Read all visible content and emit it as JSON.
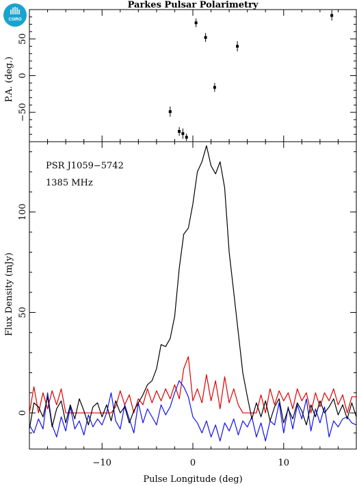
{
  "chart_data": [
    {
      "type": "scatter",
      "title": "Parkes Pulsar Polarimetry",
      "ylabel": "P.A. (deg.)",
      "xlim": [
        -18,
        18
      ],
      "ylim": [
        -90,
        90
      ],
      "yticks": [
        -50,
        0,
        50
      ],
      "points": [
        {
          "x": -2.5,
          "y": -49,
          "err": 7
        },
        {
          "x": -1.5,
          "y": -76,
          "err": 6
        },
        {
          "x": -1.1,
          "y": -79,
          "err": 7
        },
        {
          "x": -0.7,
          "y": -84,
          "err": 5
        },
        {
          "x": 0.35,
          "y": 72,
          "err": 6
        },
        {
          "x": 1.4,
          "y": 52,
          "err": 6
        },
        {
          "x": 2.4,
          "y": -16,
          "err": 6
        },
        {
          "x": 4.9,
          "y": 40,
          "err": 7
        },
        {
          "x": 15.3,
          "y": 82,
          "err": 7
        }
      ]
    },
    {
      "type": "line",
      "ylabel": "Flux Density (mJy)",
      "xlabel": "Pulse Longitude (deg)",
      "xlim": [
        -18,
        18
      ],
      "ylim": [
        -18,
        135
      ],
      "xticks": [
        -10,
        0,
        10
      ],
      "yticks": [
        0,
        50,
        100
      ],
      "annotations": [
        "PSR J1059−5742",
        "1385 MHz"
      ],
      "series": [
        {
          "color": "#000000",
          "x": [
            -18.0,
            -17.5,
            -17.0,
            -16.5,
            -16.0,
            -15.5,
            -15.0,
            -14.5,
            -14.0,
            -13.5,
            -13.0,
            -12.5,
            -12.0,
            -11.5,
            -11.0,
            -10.5,
            -10.0,
            -9.5,
            -9.0,
            -8.5,
            -8.0,
            -7.5,
            -7.0,
            -6.5,
            -6.0,
            -5.5,
            -5.0,
            -4.5,
            -4.0,
            -3.5,
            -3.0,
            -2.5,
            -2.0,
            -1.5,
            -1.0,
            -0.5,
            0.0,
            0.5,
            1.0,
            1.5,
            2.0,
            2.5,
            3.0,
            3.5,
            4.0,
            4.5,
            5.0,
            5.5,
            6.0,
            6.5,
            7.0,
            7.5,
            8.0,
            8.5,
            9.0,
            9.5,
            10.0,
            10.5,
            11.0,
            11.5,
            12.0,
            12.5,
            13.0,
            13.5,
            14.0,
            14.5,
            15.0,
            15.5,
            16.0,
            16.5,
            17.0,
            17.5,
            18.0
          ],
          "values": [
            -8,
            5,
            3,
            -2,
            8,
            -7,
            2,
            6,
            -5,
            4,
            -3,
            7,
            1,
            -6,
            3,
            5,
            -2,
            4,
            -4,
            6,
            0,
            3,
            -5,
            1,
            5,
            9,
            14,
            16,
            22,
            34,
            33,
            37,
            48,
            72,
            89,
            92,
            104,
            120,
            125,
            133,
            123,
            119,
            125,
            112,
            80,
            60,
            40,
            20,
            8,
            -3,
            5,
            -2,
            6,
            -4,
            3,
            7,
            -5,
            2,
            -3,
            5,
            1,
            -6,
            4,
            -2,
            6,
            0,
            3,
            7,
            -1,
            4,
            -3,
            5,
            -2
          ]
        },
        {
          "color": "#dd0000",
          "x": [
            -18.0,
            -17.5,
            -17.0,
            -16.5,
            -16.0,
            -15.5,
            -15.0,
            -14.5,
            -14.0,
            -13.5,
            -13.0,
            -12.5,
            -12.0,
            -11.5,
            -11.0,
            -10.5,
            -10.0,
            -9.5,
            -9.0,
            -8.5,
            -8.0,
            -7.5,
            -7.0,
            -6.5,
            -6.0,
            -5.5,
            -5.0,
            -4.5,
            -4.0,
            -3.5,
            -3.0,
            -2.5,
            -2.0,
            -1.5,
            -1.0,
            -0.5,
            0.0,
            0.5,
            1.0,
            1.5,
            2.0,
            2.5,
            3.0,
            3.5,
            4.0,
            4.5,
            5.0,
            5.5,
            6.0,
            6.5,
            7.0,
            7.5,
            8.0,
            8.5,
            9.0,
            9.5,
            10.0,
            10.5,
            11.0,
            11.5,
            12.0,
            12.5,
            13.0,
            13.5,
            14.0,
            14.5,
            15.0,
            15.5,
            16.0,
            16.5,
            17.0,
            17.5,
            18.0
          ],
          "values": [
            0,
            13,
            0,
            10,
            2,
            11,
            4,
            12,
            0,
            0,
            0,
            0,
            0,
            0,
            0,
            0,
            0,
            0,
            0,
            3,
            11,
            4,
            9,
            0,
            7,
            4,
            12,
            5,
            11,
            6,
            12,
            7,
            14,
            7,
            22,
            28,
            6,
            12,
            5,
            19,
            6,
            16,
            2,
            18,
            5,
            12,
            4,
            0,
            0,
            0,
            0,
            9,
            0,
            12,
            4,
            11,
            6,
            10,
            2,
            12,
            6,
            10,
            0,
            10,
            3,
            10,
            6,
            12,
            4,
            9,
            0,
            8,
            8
          ]
        },
        {
          "color": "#1010ee",
          "x": [
            -18.0,
            -17.5,
            -17.0,
            -16.5,
            -16.0,
            -15.5,
            -15.0,
            -14.5,
            -14.0,
            -13.5,
            -13.0,
            -12.5,
            -12.0,
            -11.5,
            -11.0,
            -10.5,
            -10.0,
            -9.5,
            -9.0,
            -8.5,
            -8.0,
            -7.5,
            -7.0,
            -6.5,
            -6.0,
            -5.5,
            -5.0,
            -4.5,
            -4.0,
            -3.5,
            -3.0,
            -2.5,
            -2.0,
            -1.5,
            -1.0,
            -0.5,
            0.0,
            0.5,
            1.0,
            1.5,
            2.0,
            2.5,
            3.0,
            3.5,
            4.0,
            4.5,
            5.0,
            5.5,
            6.0,
            6.5,
            7.0,
            7.5,
            8.0,
            8.5,
            9.0,
            9.5,
            10.0,
            10.5,
            11.0,
            11.5,
            12.0,
            12.5,
            13.0,
            13.5,
            14.0,
            14.5,
            15.0,
            15.5,
            16.0,
            16.5,
            17.0,
            17.5,
            18.0
          ],
          "values": [
            -6,
            -10,
            -3,
            -8,
            10,
            -6,
            -12,
            -2,
            -9,
            3,
            -8,
            -4,
            -11,
            -1,
            -7,
            -3,
            -6,
            0,
            10,
            -4,
            -8,
            4,
            -3,
            -10,
            5,
            -5,
            2,
            -2,
            -6,
            4,
            -1,
            3,
            10,
            16,
            13,
            8,
            -2,
            -5,
            -10,
            -4,
            -12,
            -6,
            -14,
            -5,
            -9,
            -3,
            -11,
            -4,
            -7,
            -2,
            -12,
            -5,
            -14,
            -4,
            -6,
            5,
            -10,
            3,
            -8,
            4,
            -3,
            7,
            -9,
            2,
            -5,
            3,
            -12,
            -4,
            -7,
            -3,
            -2,
            -5,
            -6
          ]
        }
      ]
    }
  ],
  "logo": {
    "text": "CSIRO",
    "color": "#1aa3cc"
  }
}
